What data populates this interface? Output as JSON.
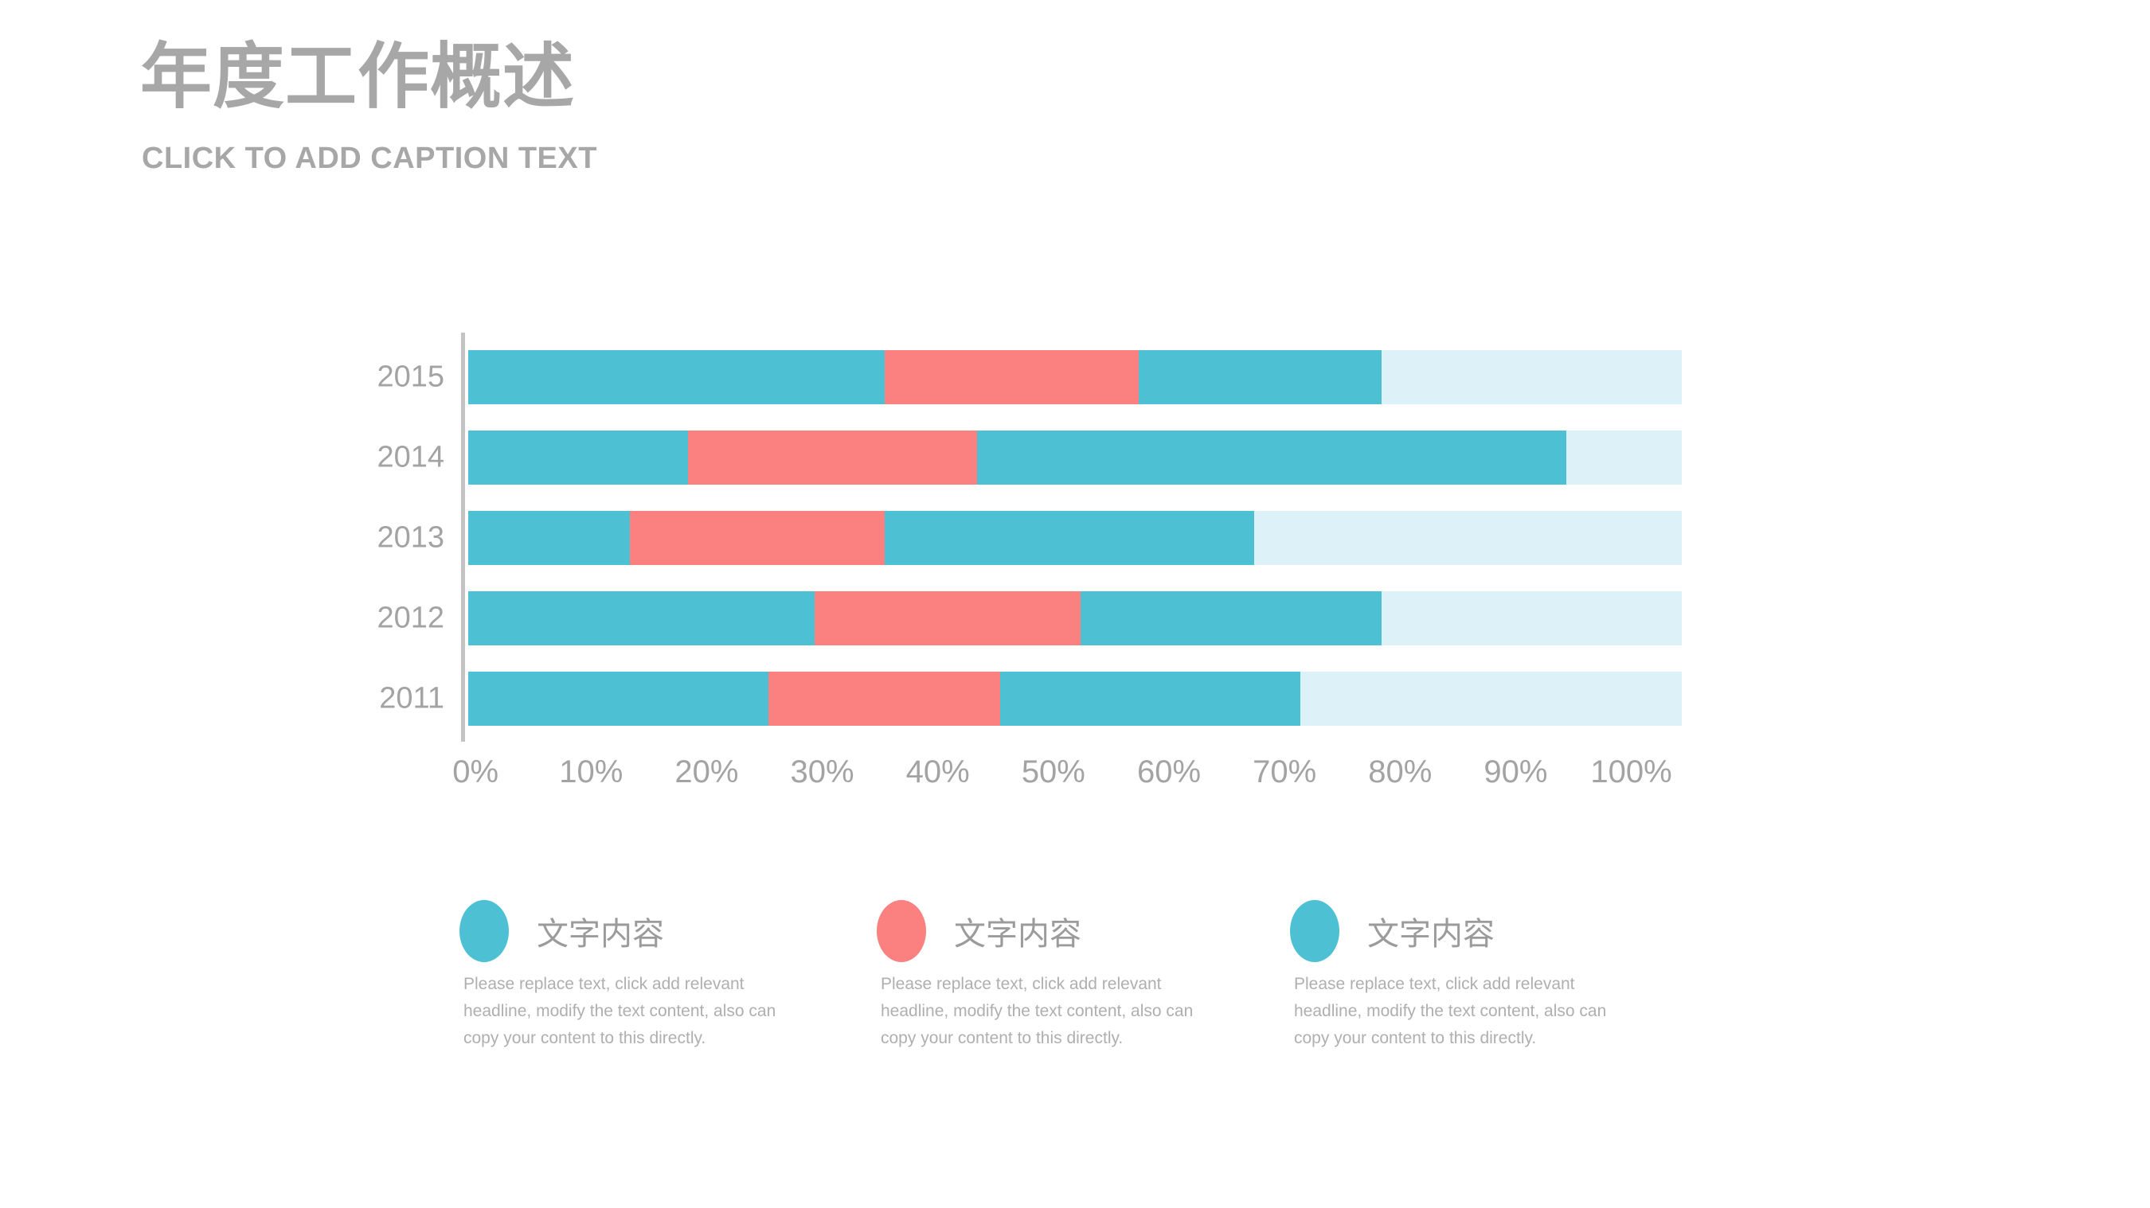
{
  "slide": {
    "title": "年度工作概述",
    "subtitle": "CLICK TO ADD CAPTION TEXT"
  },
  "colors": {
    "teal": "#4dc0d3",
    "red": "#fb8181",
    "track_light_blue": "#ddf1f8",
    "axis_gray": "#c3c3c3",
    "text_gray": "#a7a7a7"
  },
  "chart_data": {
    "type": "bar",
    "orientation": "horizontal",
    "stacked": true,
    "grid": false,
    "title": "",
    "xlabel": "",
    "ylabel": "",
    "x_range": [
      0,
      105
    ],
    "x_ticks": [
      "0%",
      "10%",
      "20%",
      "30%",
      "40%",
      "50%",
      "60%",
      "70%",
      "80%",
      "90%",
      "100%"
    ],
    "categories": [
      "2015",
      "2014",
      "2013",
      "2012",
      "2011"
    ],
    "series": [
      {
        "name": "文字内容",
        "color": "#4dc0d3",
        "values": [
          36,
          19,
          14,
          30,
          26
        ]
      },
      {
        "name": "文字内容",
        "color": "#fb8181",
        "values": [
          22,
          25,
          22,
          23,
          20
        ]
      },
      {
        "name": "文字内容",
        "color": "#4dc0d3",
        "values": [
          21,
          51,
          32,
          26,
          26
        ]
      }
    ],
    "background_track": {
      "color": "#ddf1f8",
      "extends_to": 105
    },
    "legend_position": "bottom"
  },
  "legend": {
    "items": [
      {
        "swatch_color": "#4dc0d3",
        "title": "文字内容",
        "description_lines": [
          "Please replace text, click add relevant",
          "headline, modify the text content, also can",
          "copy your content to this directly."
        ]
      },
      {
        "swatch_color": "#fb8181",
        "title": "文字内容",
        "description_lines": [
          "Please replace text, click add relevant",
          "headline, modify the text content, also can",
          "copy your content to this directly."
        ]
      },
      {
        "swatch_color": "#4dc0d3",
        "title": "文字内容",
        "description_lines": [
          "Please replace text, click add relevant",
          "headline, modify the text content, also can",
          "copy your content to this directly."
        ]
      }
    ]
  }
}
